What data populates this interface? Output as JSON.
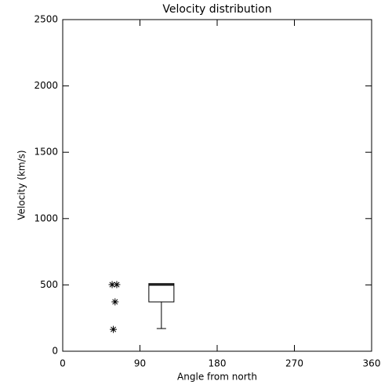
{
  "chart_data": {
    "type": "box",
    "title": "Velocity distribution",
    "x_label": "Angle from north",
    "y_label": "Velocity (km/s)",
    "xlim": [
      0,
      360
    ],
    "xticks": [
      0,
      90,
      180,
      270,
      360
    ],
    "ylim": [
      0,
      2500
    ],
    "yticks": [
      0,
      500,
      1000,
      1500,
      2000,
      2500
    ],
    "boxes": [
      {
        "x": 115,
        "min": 171,
        "q1": 372,
        "median": 500,
        "q3": 510,
        "max": 510
      }
    ],
    "outliers": {
      "x": [
        57.6,
        63,
        61,
        59
      ],
      "y": [
        502,
        502,
        372,
        165
      ]
    },
    "color": "#000000"
  }
}
